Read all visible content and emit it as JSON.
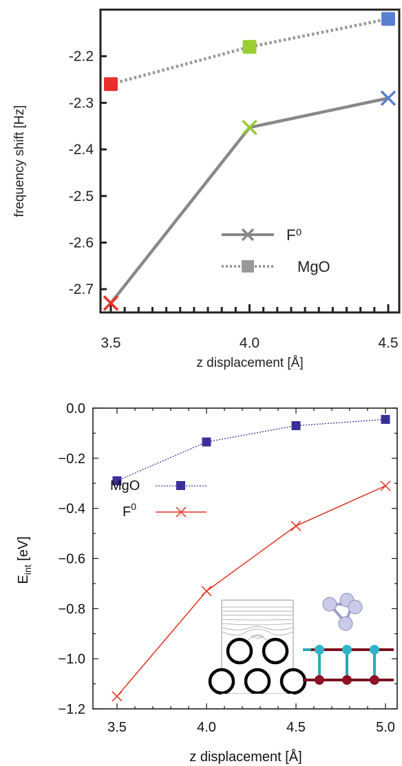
{
  "chart_data": [
    {
      "type": "line",
      "xlabel": "z displacement [Å]",
      "ylabel": "frequency shift [Hz]",
      "xlim": [
        3.5,
        4.5
      ],
      "ylim": [
        -2.75,
        -2.1
      ],
      "x_ticks": [
        "3.5",
        "4.0",
        "4.5"
      ],
      "y_ticks": [
        "-2.2",
        "-2.3",
        "-2.4",
        "-2.5",
        "-2.6",
        "-2.7"
      ],
      "x": [
        3.5,
        4.0,
        4.5
      ],
      "series": [
        {
          "name": "F⁰",
          "values": [
            -2.73,
            -2.353,
            -2.29
          ],
          "style": "solid",
          "marker": "x",
          "color": "#888888",
          "point_colors": [
            "#e8312a",
            "#9acd32",
            "#5b7fcf"
          ]
        },
        {
          "name": "MgO",
          "values": [
            -2.26,
            -2.18,
            -2.12
          ],
          "style": "dotted",
          "marker": "square",
          "color": "#999999",
          "point_colors": [
            "#e8312a",
            "#9acd32",
            "#5b7fcf"
          ]
        }
      ],
      "legend": {
        "entries": [
          "F⁰",
          "MgO"
        ],
        "placement": "lower-right"
      },
      "grid": false
    },
    {
      "type": "line",
      "xlabel": "z displacement [Å]",
      "ylabel": "E",
      "ylabel_sub": "int",
      "ylabel_unit": " [eV]",
      "xlim": [
        3.5,
        5.0
      ],
      "ylim": [
        -1.2,
        0.0
      ],
      "x_ticks": [
        "3.5",
        "4.0",
        "4.5",
        "5.0"
      ],
      "y_ticks": [
        "0.0",
        "−0.2",
        "−0.4",
        "−0.6",
        "−0.8",
        "−1.0",
        "−1.2"
      ],
      "x": [
        3.5,
        4.0,
        4.5,
        5.0
      ],
      "series": [
        {
          "name": "MgO",
          "values": [
            -0.29,
            -0.135,
            -0.07,
            -0.045
          ],
          "style": "dotted",
          "marker": "square",
          "color": "#3a2f9a"
        },
        {
          "name": "F",
          "name_sup": "0",
          "values": [
            -1.15,
            -0.73,
            -0.47,
            -0.31
          ],
          "style": "solid",
          "marker": "x",
          "color": "#e0311f"
        }
      ],
      "legend": {
        "placement": "upper-left"
      },
      "grid": false,
      "insets": [
        "contour plot of potential above surface atoms",
        "molecular cluster rendering",
        "MgO lattice ball-and-stick"
      ]
    }
  ]
}
